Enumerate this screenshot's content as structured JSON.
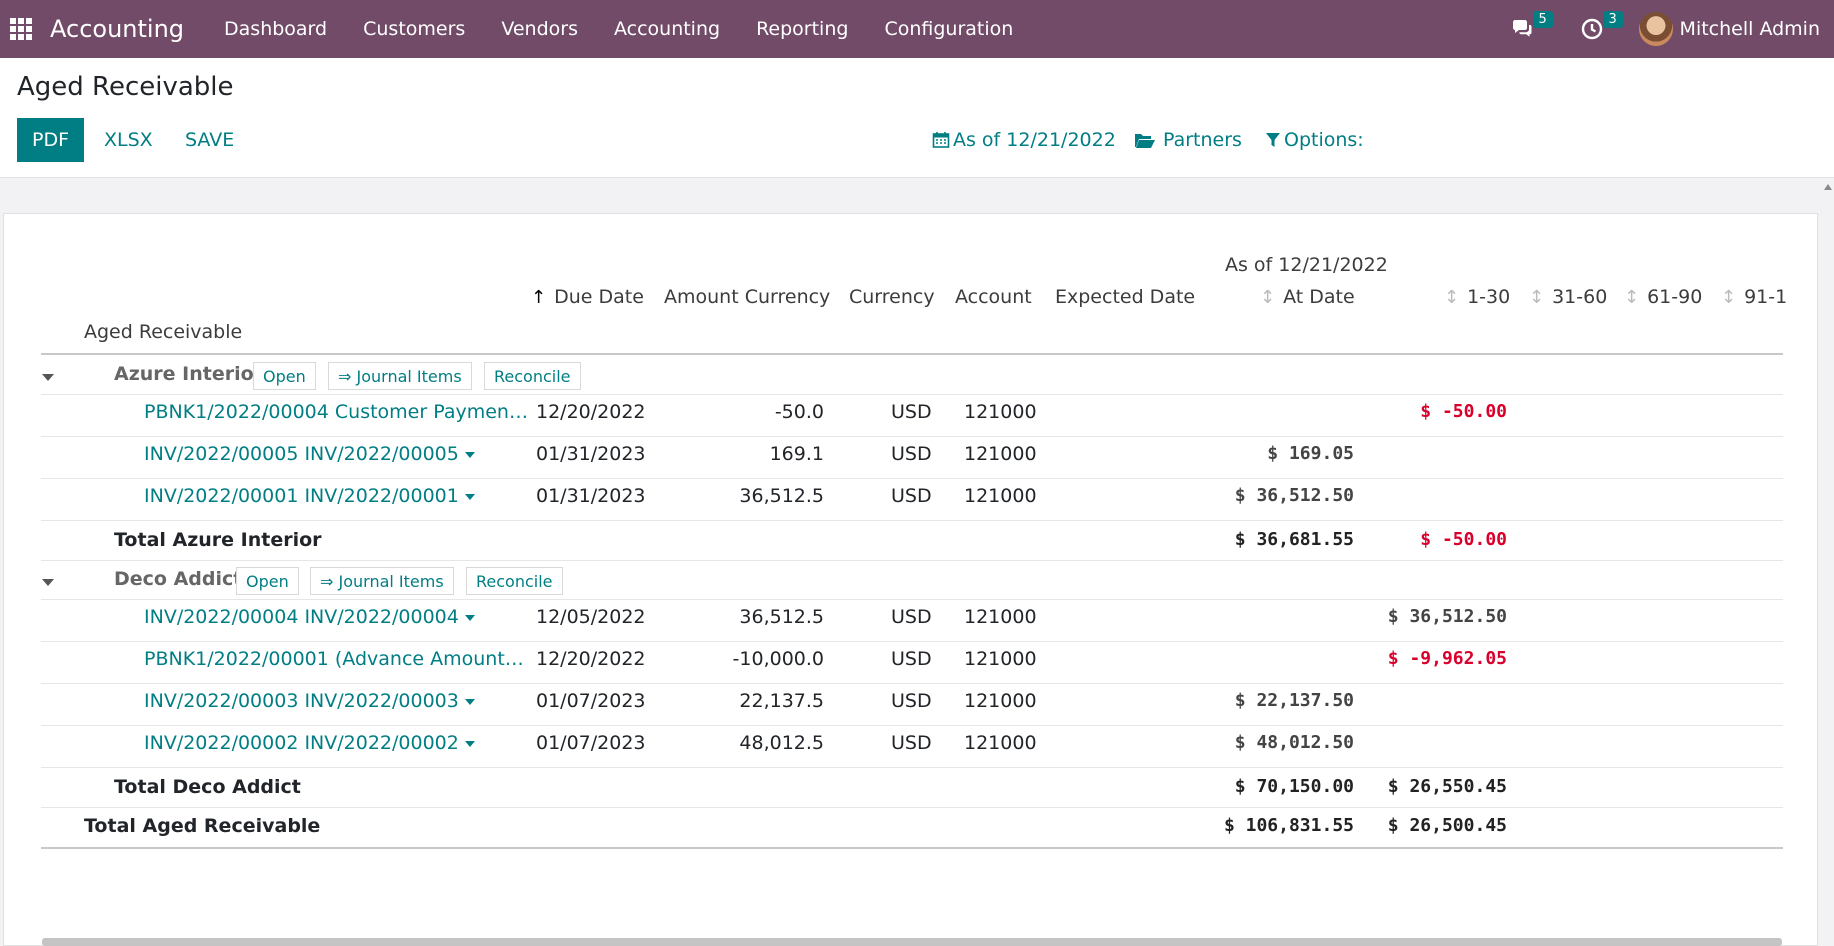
{
  "navbar": {
    "app_name": "Accounting",
    "menu": [
      "Dashboard",
      "Customers",
      "Vendors",
      "Accounting",
      "Reporting",
      "Configuration"
    ],
    "messages_count": "5",
    "activities_count": "3",
    "user_name": "Mitchell Admin"
  },
  "control_panel": {
    "title": "Aged Receivable",
    "buttons": {
      "pdf": "PDF",
      "xlsx": "XLSX",
      "save": "SAVE"
    },
    "filters": {
      "date": "As of 12/21/2022",
      "partners": "Partners",
      "options": "Options:"
    }
  },
  "report": {
    "header_period": "As of 12/21/2022",
    "columns": {
      "name": "Aged Receivable",
      "due_date": "Due Date",
      "amount_currency": "Amount Currency",
      "currency": "Currency",
      "account": "Account",
      "expected_date": "Expected Date",
      "at_date": "At Date",
      "c1_30": "1-30",
      "c31_60": "31-60",
      "c61_90": "61-90",
      "c91": "91-1"
    },
    "group_buttons": {
      "open": "Open",
      "journal_items": "⇒ Journal Items",
      "reconcile": "Reconcile"
    },
    "groups": [
      {
        "partner": "Azure Interior",
        "lines": [
          {
            "ref": "PBNK1/2022/00004 Customer Paymen…",
            "due_date": "12/20/2022",
            "amount_currency": "-50.0",
            "currency": "USD",
            "account": "121000",
            "at_date": "",
            "c1_30": "$ -50.00"
          },
          {
            "ref": "INV/2022/00005 INV/2022/00005",
            "due_date": "01/31/2023",
            "amount_currency": "169.1",
            "currency": "USD",
            "account": "121000",
            "at_date": "$ 169.05",
            "c1_30": ""
          },
          {
            "ref": "INV/2022/00001 INV/2022/00001",
            "due_date": "01/31/2023",
            "amount_currency": "36,512.5",
            "currency": "USD",
            "account": "121000",
            "at_date": "$ 36,512.50",
            "c1_30": ""
          }
        ],
        "total_label": "Total Azure Interior",
        "total_at_date": "$ 36,681.55",
        "total_c1_30": "$ -50.00"
      },
      {
        "partner": "Deco Addict",
        "lines": [
          {
            "ref": "INV/2022/00004 INV/2022/00004",
            "due_date": "12/05/2022",
            "amount_currency": "36,512.5",
            "currency": "USD",
            "account": "121000",
            "at_date": "",
            "c1_30": "$ 36,512.50"
          },
          {
            "ref": "PBNK1/2022/00001 (Advance Amount…",
            "due_date": "12/20/2022",
            "amount_currency": "-10,000.0",
            "currency": "USD",
            "account": "121000",
            "at_date": "",
            "c1_30": "$ -9,962.05"
          },
          {
            "ref": "INV/2022/00003 INV/2022/00003",
            "due_date": "01/07/2023",
            "amount_currency": "22,137.5",
            "currency": "USD",
            "account": "121000",
            "at_date": "$ 22,137.50",
            "c1_30": ""
          },
          {
            "ref": "INV/2022/00002 INV/2022/00002",
            "due_date": "01/07/2023",
            "amount_currency": "48,012.5",
            "currency": "USD",
            "account": "121000",
            "at_date": "$ 48,012.50",
            "c1_30": ""
          }
        ],
        "total_label": "Total Deco Addict",
        "total_at_date": "$ 70,150.00",
        "total_c1_30": "$ 26,550.45"
      }
    ],
    "grand_total_label": "Total Aged Receivable",
    "grand_total_at_date": "$ 106,831.55",
    "grand_total_c1_30": "$ 26,500.45"
  },
  "colors": {
    "navbar": "#714b67",
    "accent": "#017e84",
    "negative": "#d9002c"
  }
}
